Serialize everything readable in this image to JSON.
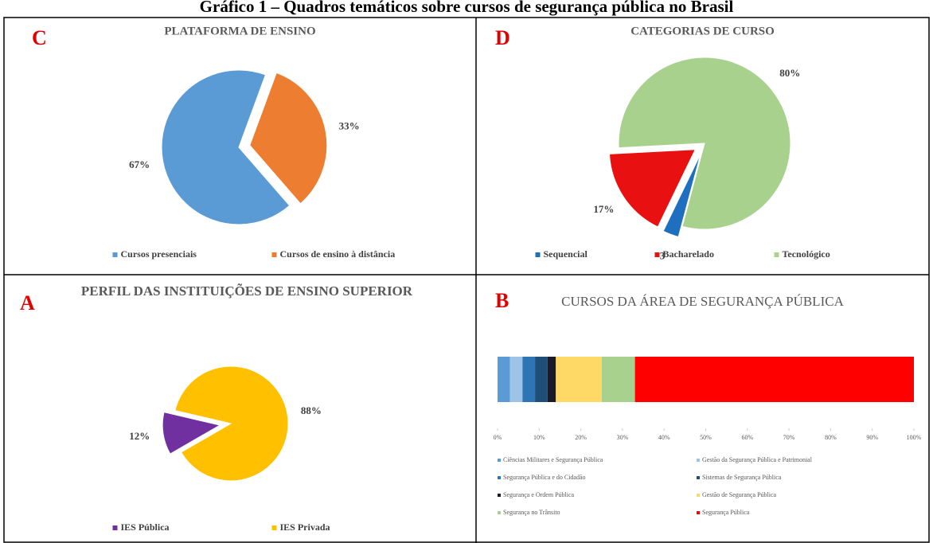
{
  "title": "Gráfico 1 – Quadros temáticos sobre cursos de segurança pública no Brasil",
  "chart_data": [
    {
      "type": "pie",
      "panel": "C",
      "title": "PLATAFORMA DE ENSINO",
      "categories": [
        "Cursos presenciais",
        "Cursos de ensino à distância"
      ],
      "values": [
        67,
        33
      ],
      "value_labels": [
        "67%",
        "33%"
      ],
      "colors": [
        "#5b9bd5",
        "#ed7d31"
      ]
    },
    {
      "type": "pie",
      "panel": "D",
      "title": "CATEGORIAS DE CURSO",
      "categories": [
        "Sequencial",
        "Bacharelado",
        "Tecnológico"
      ],
      "values": [
        3,
        17,
        80
      ],
      "value_labels": [
        "3",
        "17%",
        "80%"
      ],
      "colors": [
        "#1f6fc0",
        "#e81010",
        "#a9d18e"
      ]
    },
    {
      "type": "pie",
      "panel": "A",
      "title": "PERFIL DAS INSTITUIÇÕES DE ENSINO SUPERIOR",
      "categories": [
        "IES Pública",
        "IES Privada"
      ],
      "values": [
        12,
        88
      ],
      "value_labels": [
        "12%",
        "88%"
      ],
      "colors": [
        "#7030a0",
        "#ffc000"
      ]
    },
    {
      "type": "stacked_bar",
      "panel": "B",
      "title": "CURSOS DA ÁREA DE SEGURANÇA PÚBLICA",
      "series": [
        {
          "name": "Ciências Militares e Segurança Pública",
          "color": "#5b9bd5",
          "values": [
            3
          ]
        },
        {
          "name": "Gestão da Segurança Pública e Patrimonial",
          "color": "#9dc3e6",
          "values": [
            3
          ]
        },
        {
          "name": "Segurança Pública e do Cidadão",
          "color": "#2e75b6",
          "values": [
            3
          ]
        },
        {
          "name": "Sistemas de Segurança Pública",
          "color": "#1f4e79",
          "values": [
            3
          ]
        },
        {
          "name": "Segurança e Ordem Pública",
          "color": "#1a1a2a",
          "values": [
            2
          ]
        },
        {
          "name": "Gestão de Segurança Pública",
          "color": "#ffd966",
          "values": [
            11
          ]
        },
        {
          "name": "Segurança no Trânsito",
          "color": "#a9d18e",
          "values": [
            8
          ]
        },
        {
          "name": "Segurança Pública",
          "color": "#ff0000",
          "values": [
            67
          ]
        }
      ],
      "xlim": [
        0,
        100
      ],
      "xticks": [
        {
          "value": 0,
          "label": "0%"
        },
        {
          "value": 10,
          "label": "10%"
        },
        {
          "value": 20,
          "label": "20%"
        },
        {
          "value": 30,
          "label": "30%"
        },
        {
          "value": 40,
          "label": "40%"
        },
        {
          "value": 50,
          "label": "50%"
        },
        {
          "value": 60,
          "label": "60%"
        },
        {
          "value": 70,
          "label": "70%"
        },
        {
          "value": 80,
          "label": "80%"
        },
        {
          "value": 90,
          "label": "90%"
        },
        {
          "value": 100,
          "label": "100%"
        }
      ]
    }
  ]
}
